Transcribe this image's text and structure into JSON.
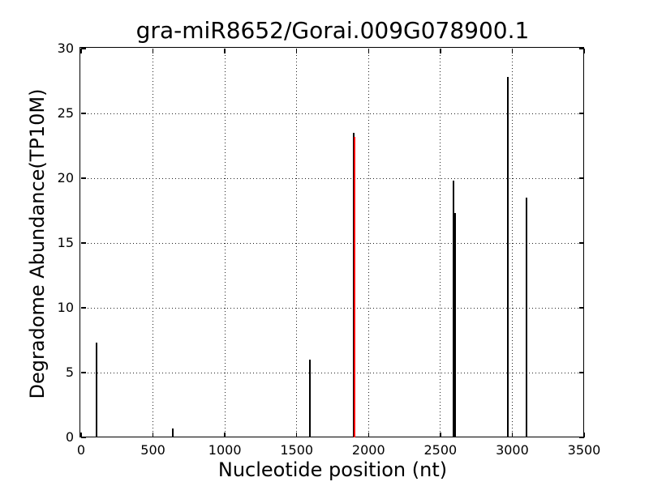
{
  "chart_data": {
    "type": "bar",
    "subtype": "stem-degradome-plot",
    "title": "gra-miR8652/Gorai.009G078900.1",
    "xlabel": "Nucleotide position (nt)",
    "ylabel": "Degradome Abundance(TP10M)",
    "xlim": [
      0,
      3500
    ],
    "ylim": [
      0,
      30
    ],
    "x_ticks": [
      0,
      500,
      1000,
      1500,
      2000,
      2500,
      3000,
      3500
    ],
    "y_ticks": [
      0,
      5,
      10,
      15,
      20,
      25,
      30
    ],
    "grid": "dotted",
    "legend": "none",
    "colors": {
      "default_stem": "#000000",
      "highlight_stem": "#ff0000",
      "grid": "#222222",
      "axis": "#000000",
      "background": "#ffffff"
    },
    "points": [
      {
        "x": 109,
        "y": 7.3,
        "color": "#000000",
        "highlight": false
      },
      {
        "x": 640,
        "y": 0.7,
        "color": "#000000",
        "highlight": false
      },
      {
        "x": 1594,
        "y": 6.0,
        "color": "#000000",
        "highlight": false
      },
      {
        "x": 1899,
        "y": 23.5,
        "color": "#000000",
        "highlight": false
      },
      {
        "x": 1902,
        "y": 23.2,
        "color": "#ff0000",
        "highlight": true
      },
      {
        "x": 2593,
        "y": 19.8,
        "color": "#000000",
        "highlight": false
      },
      {
        "x": 2602,
        "y": 17.3,
        "color": "#000000",
        "highlight": false
      },
      {
        "x": 2968,
        "y": 27.8,
        "color": "#000000",
        "highlight": false
      },
      {
        "x": 3100,
        "y": 18.5,
        "color": "#000000",
        "highlight": false
      }
    ]
  }
}
